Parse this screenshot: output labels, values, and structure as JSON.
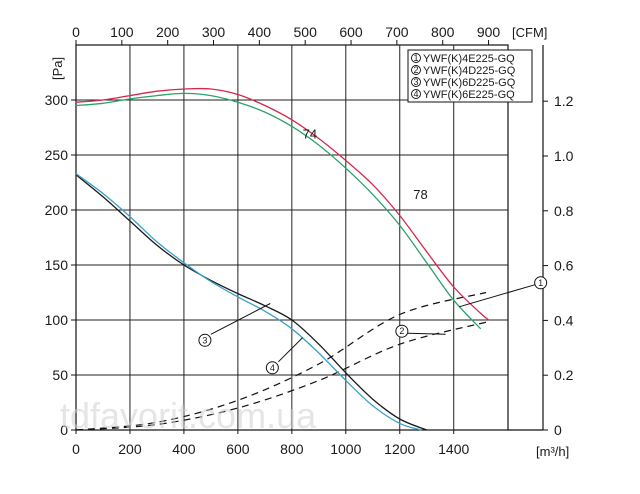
{
  "chart_data": {
    "type": "line",
    "x_axis": {
      "unit": "[m³/h]",
      "ticks": [
        0,
        200,
        400,
        600,
        800,
        1000,
        1200,
        1400
      ],
      "range": [
        0,
        1800
      ]
    },
    "x_top_axis": {
      "unit": "[CFM]",
      "ticks": [
        0,
        100,
        200,
        300,
        400,
        500,
        600,
        700,
        800,
        900
      ]
    },
    "y_axis": {
      "unit": "[Pa]",
      "ticks": [
        0,
        50,
        100,
        150,
        200,
        250,
        300
      ],
      "range": [
        0,
        350
      ]
    },
    "y_right_axis": {
      "ticks": [
        "0",
        "0.2",
        "0.4",
        "0.6",
        "0.8",
        "1.0",
        "1.2"
      ]
    },
    "grid": true,
    "legend": {
      "placement": "top-right",
      "entries": [
        {
          "marker": "1",
          "label": "YWF(K)4E225-GQ"
        },
        {
          "marker": "2",
          "label": "YWF(K)4D225-GQ"
        },
        {
          "marker": "3",
          "label": "YWF(K)6D225-GQ"
        },
        {
          "marker": "4",
          "label": "YWF(K)6E225-GQ"
        }
      ]
    },
    "series": [
      {
        "color": "#d12a4f",
        "x": [
          0,
          100,
          200,
          300,
          400,
          500,
          600,
          700,
          800,
          900,
          1000,
          1100,
          1200,
          1300,
          1400,
          1500,
          1530
        ],
        "y": [
          298,
          300,
          304,
          308,
          310,
          310,
          305,
          295,
          282,
          265,
          245,
          223,
          195,
          162,
          130,
          106,
          100
        ]
      },
      {
        "color": "#2aa36a",
        "x": [
          0,
          100,
          200,
          300,
          400,
          500,
          600,
          700,
          800,
          900,
          1000,
          1100,
          1200,
          1300,
          1400,
          1500
        ],
        "y": [
          295,
          297,
          301,
          304,
          306,
          304,
          298,
          289,
          276,
          259,
          238,
          214,
          186,
          152,
          118,
          92
        ]
      },
      {
        "color": "#1a1a1a",
        "x": [
          0,
          100,
          200,
          300,
          400,
          500,
          600,
          700,
          800,
          900,
          1000,
          1100,
          1200,
          1300
        ],
        "y": [
          232,
          212,
          190,
          168,
          150,
          136,
          124,
          113,
          100,
          78,
          52,
          28,
          10,
          0
        ]
      },
      {
        "color": "#3aa0c8",
        "x": [
          0,
          100,
          200,
          300,
          400,
          500,
          600,
          700,
          800,
          900,
          1000,
          1100,
          1200,
          1280
        ],
        "y": [
          233,
          215,
          194,
          171,
          152,
          135,
          121,
          108,
          92,
          70,
          45,
          22,
          6,
          0
        ]
      }
    ],
    "system_curves": [
      {
        "x": [
          0,
          300,
          600,
          900,
          1200,
          1520
        ],
        "y": [
          0,
          7,
          27,
          60,
          105,
          125
        ]
      },
      {
        "x": [
          0,
          300,
          600,
          900,
          1200,
          1520
        ],
        "y": [
          0,
          5,
          20,
          45,
          78,
          98
        ]
      }
    ],
    "annotations": [
      {
        "text": "74",
        "x": 840,
        "y": 265
      },
      {
        "text": "78",
        "x": 1250,
        "y": 210
      }
    ],
    "callouts": [
      {
        "marker": "1",
        "from": [
          1420,
          112
        ],
        "to": [
          1700,
          132
        ]
      },
      {
        "marker": "2",
        "from": [
          1370,
          87
        ],
        "to": [
          1230,
          88
        ]
      },
      {
        "marker": "3",
        "from": [
          720,
          115
        ],
        "to": [
          500,
          87
        ]
      },
      {
        "marker": "4",
        "from": [
          840,
          84
        ],
        "to": [
          750,
          62
        ]
      }
    ]
  },
  "watermark": "tdfavorit.com.ua"
}
